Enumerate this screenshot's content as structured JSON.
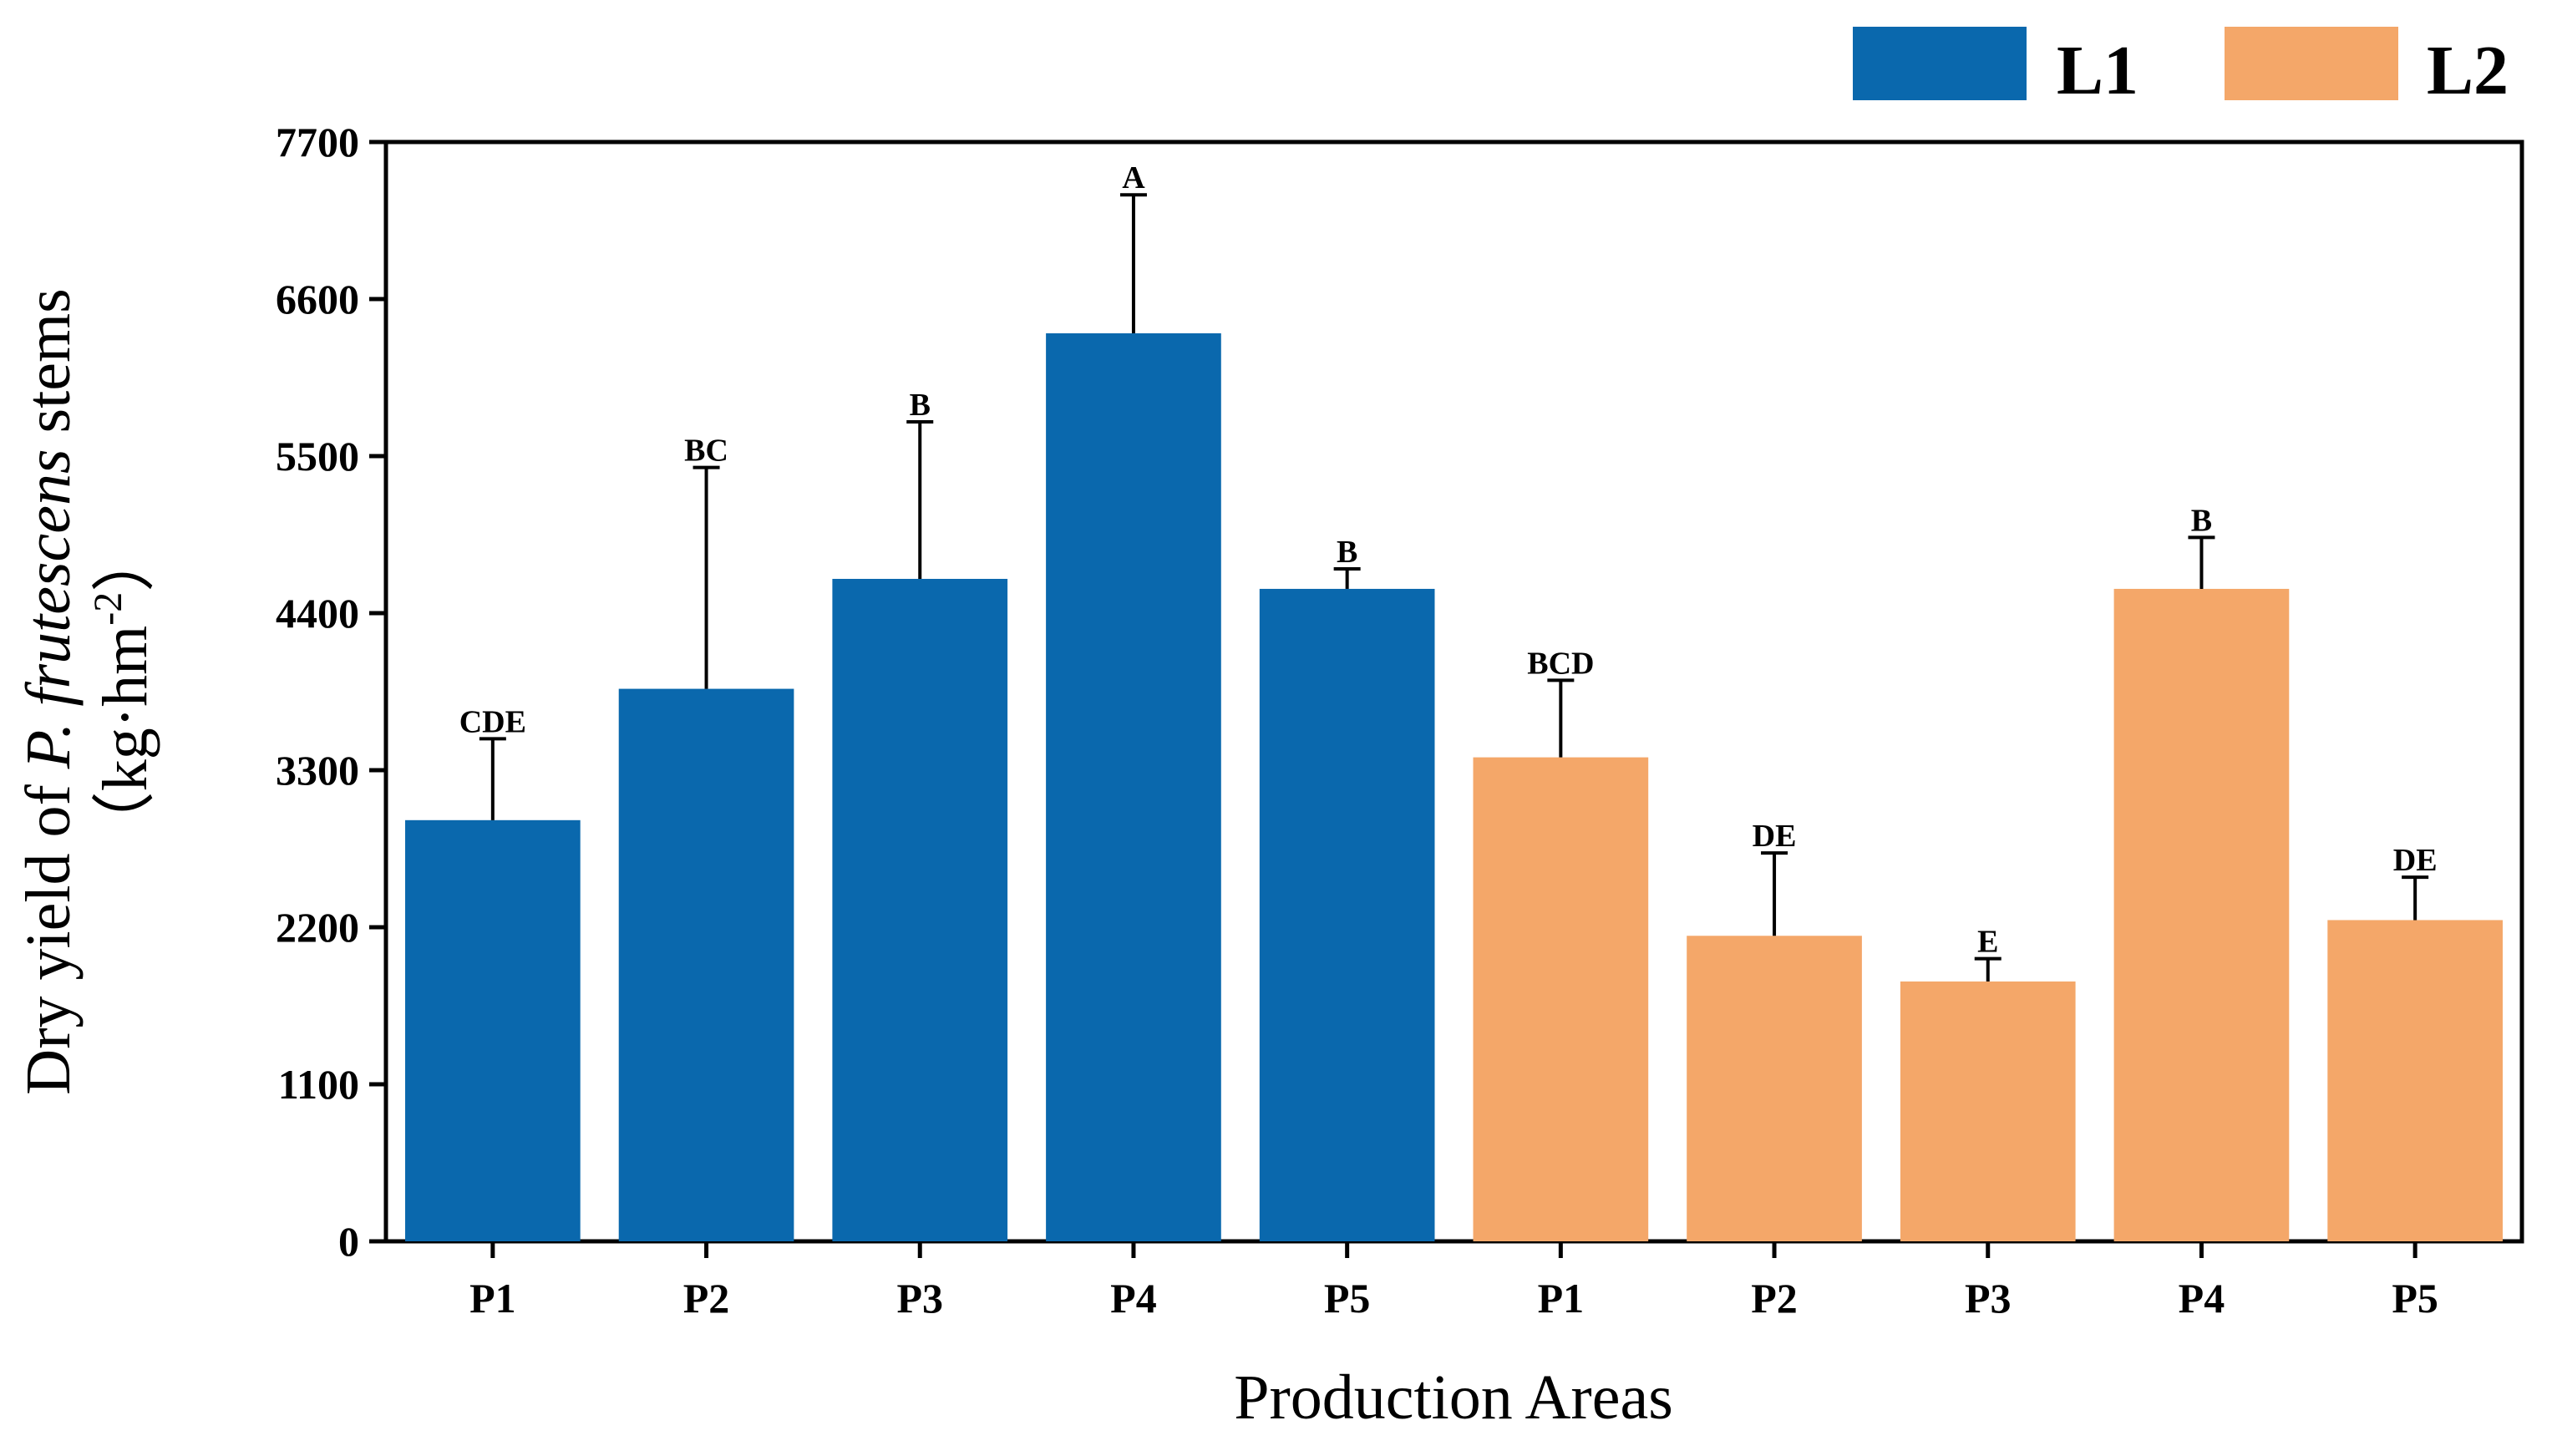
{
  "chart_data": {
    "type": "bar",
    "title": "",
    "xlabel": "Production Areas",
    "ylabel": {
      "prefix": "Dry yield of ",
      "italic": "P. frutescens",
      "suffix": " stems",
      "unit_open": "（kg·hm",
      "unit_sup": "-2",
      "unit_close": "）"
    },
    "ylim": [
      0,
      7700
    ],
    "yticks": [
      "0",
      "1100",
      "2200",
      "3300",
      "4400",
      "5500",
      "6600",
      "7700"
    ],
    "grid": false,
    "legend_position": "top-right",
    "colors": {
      "L1": "#0a68ad",
      "L2": "#f4a769",
      "axis": "#000000"
    },
    "series": [
      {
        "name": "L1",
        "categories": [
          "P1",
          "P2",
          "P3",
          "P4",
          "P5"
        ],
        "values": [
          2950,
          3870,
          4640,
          6360,
          4570
        ],
        "errors": [
          570,
          1550,
          1100,
          970,
          140
        ],
        "letters": [
          "CDE",
          "BC",
          "B",
          "A",
          "B"
        ]
      },
      {
        "name": "L2",
        "categories": [
          "P1",
          "P2",
          "P3",
          "P4",
          "P5"
        ],
        "values": [
          3390,
          2140,
          1820,
          4570,
          2250
        ],
        "errors": [
          540,
          580,
          160,
          360,
          300
        ],
        "letters": [
          "BCD",
          "DE",
          "E",
          "B",
          "DE"
        ]
      }
    ]
  }
}
